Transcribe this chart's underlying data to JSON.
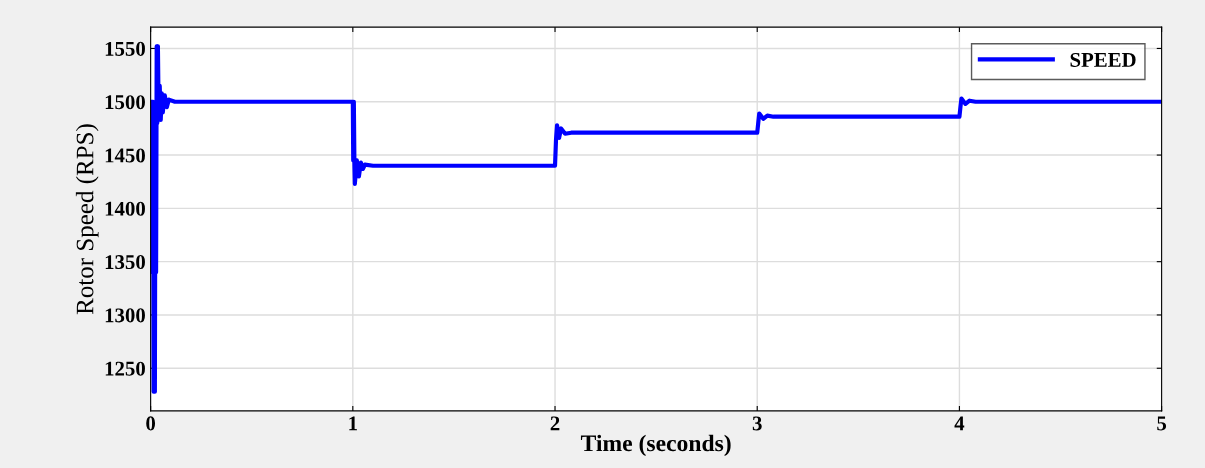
{
  "chart_data": {
    "type": "line",
    "xlabel": "Time (seconds)",
    "ylabel": "Rotor Speed (RPS)",
    "xlim": [
      0,
      5
    ],
    "xticks": [
      0,
      1,
      2,
      3,
      4,
      5
    ],
    "ylim": [
      1210,
      1570
    ],
    "yticks": [
      1250,
      1300,
      1350,
      1400,
      1450,
      1500,
      1550
    ],
    "grid": true,
    "legend": "top right",
    "line_style": "solid",
    "marker": "none",
    "series": [
      {
        "name": "SPEED",
        "color": "#0000ff",
        "x": [
          0,
          0.003,
          0.006,
          0.009,
          0.012,
          0.015,
          0.018,
          0.021,
          0.024,
          0.027,
          0.03,
          0.033,
          0.036,
          0.04,
          0.045,
          0.05,
          0.055,
          0.06,
          0.07,
          0.08,
          0.09,
          0.12,
          1.0,
          1.002,
          1.005,
          1.008,
          1.01,
          1.02,
          1.03,
          1.04,
          1.05,
          1.06,
          1.1,
          2.0,
          2.005,
          2.01,
          2.02,
          2.03,
          2.05,
          2.08,
          3.0,
          3.005,
          3.01,
          3.03,
          3.05,
          3.08,
          4.0,
          4.005,
          4.01,
          4.03,
          4.05,
          4.08,
          5
        ],
        "values": [
          1500,
          1430,
          1500,
          1340,
          1500,
          1228,
          1490,
          1228,
          1500,
          1340,
          1552,
          1480,
          1552,
          1485,
          1515,
          1483,
          1508,
          1490,
          1506,
          1495,
          1502,
          1500,
          1500,
          1445,
          1500,
          1440,
          1423,
          1445,
          1430,
          1443,
          1437,
          1441,
          1440,
          1440,
          1465,
          1478,
          1466,
          1475,
          1470,
          1471,
          1471,
          1480,
          1489,
          1484,
          1487,
          1486,
          1486,
          1495,
          1503,
          1498,
          1501,
          1500,
          1500
        ]
      }
    ]
  }
}
